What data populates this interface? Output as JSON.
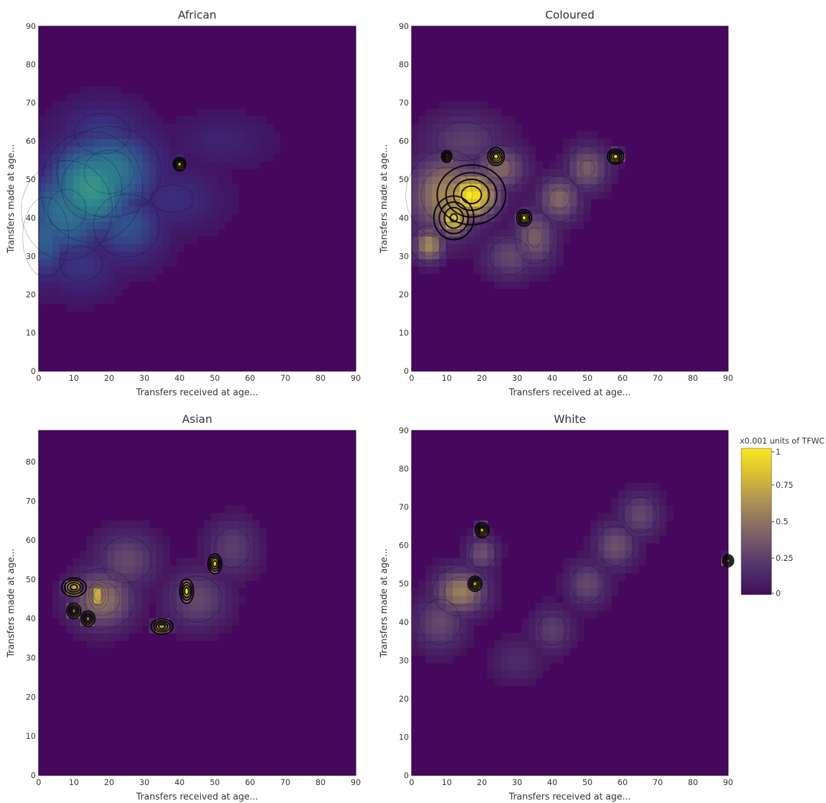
{
  "chart_data": [
    {
      "type": "heatmap",
      "title": "African",
      "xlabel": "Transfers received at age...",
      "ylabel": "Transfers made at age...",
      "xlim": [
        0,
        90
      ],
      "ylim": [
        0,
        90
      ],
      "xticks": [
        0,
        10,
        20,
        30,
        40,
        50,
        60,
        70,
        80,
        90
      ],
      "yticks": [
        0,
        10,
        20,
        30,
        40,
        50,
        60,
        70,
        80,
        90
      ],
      "hotspots": [
        {
          "x": 15,
          "y": 48,
          "value": 0.55,
          "sx": 9,
          "sy": 9
        },
        {
          "x": 20,
          "y": 52,
          "value": 0.45,
          "sx": 10,
          "sy": 8
        },
        {
          "x": 8,
          "y": 42,
          "value": 0.42,
          "sx": 9,
          "sy": 9
        },
        {
          "x": 2,
          "y": 35,
          "value": 0.35,
          "sx": 5,
          "sy": 8
        },
        {
          "x": 25,
          "y": 38,
          "value": 0.3,
          "sx": 8,
          "sy": 7
        },
        {
          "x": 38,
          "y": 45,
          "value": 0.18,
          "sx": 10,
          "sy": 6
        },
        {
          "x": 12,
          "y": 28,
          "value": 0.2,
          "sx": 8,
          "sy": 6
        },
        {
          "x": 18,
          "y": 62,
          "value": 0.22,
          "sx": 9,
          "sy": 6
        },
        {
          "x": 52,
          "y": 60,
          "value": 0.12,
          "sx": 10,
          "sy": 5
        },
        {
          "x": 40,
          "y": 54,
          "value": 1.0,
          "sx": 0.9,
          "sy": 0.9
        }
      ]
    },
    {
      "type": "heatmap",
      "title": "Coloured",
      "xlabel": "Transfers received at age...",
      "ylabel": "Transfers made at age...",
      "xlim": [
        0,
        90
      ],
      "ylim": [
        0,
        90
      ],
      "xticks": [
        0,
        10,
        20,
        30,
        40,
        50,
        60,
        70,
        80,
        90
      ],
      "yticks": [
        0,
        10,
        20,
        30,
        40,
        50,
        60,
        70,
        80,
        90
      ],
      "hotspots": [
        {
          "x": 17,
          "y": 46,
          "value": 1.0,
          "sx": 5,
          "sy": 4
        },
        {
          "x": 12,
          "y": 40,
          "value": 0.9,
          "sx": 3,
          "sy": 3
        },
        {
          "x": 5,
          "y": 33,
          "value": 0.6,
          "sx": 3,
          "sy": 3
        },
        {
          "x": 10,
          "y": 46,
          "value": 0.6,
          "sx": 7,
          "sy": 7
        },
        {
          "x": 25,
          "y": 53,
          "value": 0.45,
          "sx": 5,
          "sy": 4
        },
        {
          "x": 35,
          "y": 35,
          "value": 0.4,
          "sx": 4,
          "sy": 5
        },
        {
          "x": 42,
          "y": 45,
          "value": 0.45,
          "sx": 4,
          "sy": 4
        },
        {
          "x": 50,
          "y": 53,
          "value": 0.4,
          "sx": 4,
          "sy": 4
        },
        {
          "x": 28,
          "y": 30,
          "value": 0.3,
          "sx": 5,
          "sy": 4
        },
        {
          "x": 15,
          "y": 60,
          "value": 0.25,
          "sx": 8,
          "sy": 5
        },
        {
          "x": 24,
          "y": 56,
          "value": 1.0,
          "sx": 1.2,
          "sy": 1.2
        },
        {
          "x": 32,
          "y": 40,
          "value": 1.0,
          "sx": 1.1,
          "sy": 1.1
        },
        {
          "x": 58,
          "y": 56,
          "value": 1.0,
          "sx": 1.2,
          "sy": 1.0
        },
        {
          "x": 10,
          "y": 56,
          "value": 0.9,
          "sx": 0.8,
          "sy": 0.8
        }
      ]
    },
    {
      "type": "heatmap",
      "title": "Asian",
      "xlabel": "Transfers received at age...",
      "ylabel": "Transfers made at age...",
      "xlim": [
        0,
        90
      ],
      "ylim": [
        0,
        88
      ],
      "xticks": [
        0,
        10,
        20,
        30,
        40,
        50,
        60,
        70,
        80,
        90
      ],
      "yticks": [
        0,
        10,
        20,
        30,
        40,
        50,
        60,
        70,
        80
      ],
      "hotspots": [
        {
          "x": 10,
          "y": 48,
          "value": 1.0,
          "sx": 1.8,
          "sy": 1.2
        },
        {
          "x": 10,
          "y": 42,
          "value": 1.0,
          "sx": 1.0,
          "sy": 1.0
        },
        {
          "x": 14,
          "y": 40,
          "value": 1.0,
          "sx": 1.0,
          "sy": 1.0
        },
        {
          "x": 17,
          "y": 46,
          "value": 0.85,
          "sx": 1.5,
          "sy": 2
        },
        {
          "x": 35,
          "y": 38,
          "value": 1.0,
          "sx": 1.6,
          "sy": 1.0
        },
        {
          "x": 42,
          "y": 47,
          "value": 1.0,
          "sx": 1.0,
          "sy": 1.6
        },
        {
          "x": 50,
          "y": 54,
          "value": 1.0,
          "sx": 1.0,
          "sy": 1.3
        },
        {
          "x": 18,
          "y": 45,
          "value": 0.5,
          "sx": 6,
          "sy": 5
        },
        {
          "x": 25,
          "y": 55,
          "value": 0.3,
          "sx": 6,
          "sy": 5
        },
        {
          "x": 45,
          "y": 45,
          "value": 0.3,
          "sx": 6,
          "sy": 5
        },
        {
          "x": 55,
          "y": 58,
          "value": 0.25,
          "sx": 5,
          "sy": 5
        }
      ]
    },
    {
      "type": "heatmap",
      "title": "White",
      "xlabel": "Transfers received at age...",
      "ylabel": "Transfers made at age...",
      "xlim": [
        0,
        90
      ],
      "ylim": [
        0,
        90
      ],
      "xticks": [
        0,
        10,
        20,
        30,
        40,
        50,
        60,
        70,
        80,
        90
      ],
      "yticks": [
        0,
        10,
        20,
        30,
        40,
        50,
        60,
        70,
        80,
        90
      ],
      "hotspots": [
        {
          "x": 14,
          "y": 48,
          "value": 0.55,
          "sx": 5,
          "sy": 4
        },
        {
          "x": 8,
          "y": 40,
          "value": 0.3,
          "sx": 5,
          "sy": 5
        },
        {
          "x": 20,
          "y": 58,
          "value": 0.35,
          "sx": 3,
          "sy": 3
        },
        {
          "x": 40,
          "y": 38,
          "value": 0.25,
          "sx": 4,
          "sy": 4
        },
        {
          "x": 50,
          "y": 50,
          "value": 0.3,
          "sx": 4,
          "sy": 4
        },
        {
          "x": 58,
          "y": 60,
          "value": 0.35,
          "sx": 4,
          "sy": 4
        },
        {
          "x": 65,
          "y": 68,
          "value": 0.3,
          "sx": 4,
          "sy": 4
        },
        {
          "x": 30,
          "y": 30,
          "value": 0.15,
          "sx": 5,
          "sy": 4
        },
        {
          "x": 18,
          "y": 50,
          "value": 1.0,
          "sx": 1.0,
          "sy": 1.0
        },
        {
          "x": 20,
          "y": 64,
          "value": 1.0,
          "sx": 1.0,
          "sy": 1.0
        },
        {
          "x": 90,
          "y": 56,
          "value": 1.0,
          "sx": 0.8,
          "sy": 0.8
        }
      ]
    }
  ],
  "colorbar": {
    "title": "x0.001 units of TFWC",
    "range": [
      0,
      1
    ],
    "ticks": [
      {
        "value": 1,
        "label": "1"
      },
      {
        "value": 0.75,
        "label": "0.75"
      },
      {
        "value": 0.5,
        "label": "0.5"
      },
      {
        "value": 0.25,
        "label": "0.25"
      },
      {
        "value": 0,
        "label": "0"
      }
    ]
  },
  "colors": {
    "background": "#46085c",
    "colorscale": [
      "#440e5a",
      "#3b2a7a",
      "#2f5d8f",
      "#2e8a8c",
      "#60a972",
      "#b5c15b",
      "#f5e30f"
    ],
    "colorscale_alt": [
      "#440e5a",
      "#4e2f6c",
      "#6c4f6a",
      "#8e7360",
      "#b59a4f",
      "#dcc131",
      "#f9e71e"
    ]
  }
}
